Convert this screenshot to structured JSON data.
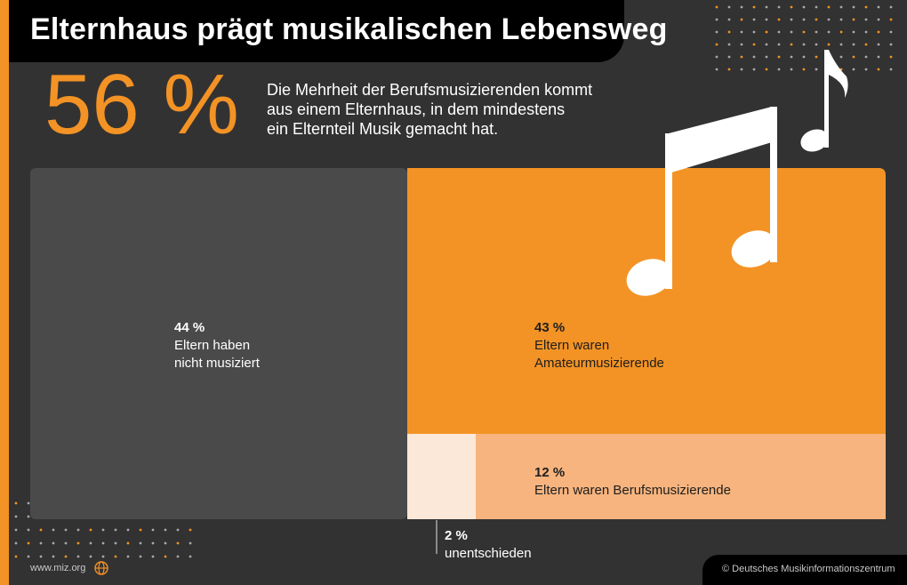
{
  "title": "Elternhaus prägt musikalischen Lebensweg",
  "headline_value": "56 %",
  "description": [
    "Die Mehrheit der Berufsmusizierenden kommt",
    "aus einem Elternhaus, in dem mindestens",
    "ein Elternteil Musik gemacht hat."
  ],
  "chart_data": {
    "type": "treemap",
    "title": "",
    "segments": [
      {
        "value": 44,
        "pct_label": "44 %",
        "label_lines": [
          "Eltern haben",
          "nicht musiziert"
        ],
        "color": "#4a4a4a"
      },
      {
        "value": 43,
        "pct_label": "43 %",
        "label_lines": [
          "Eltern waren",
          "Amateurmusizierende"
        ],
        "color": "#f39325"
      },
      {
        "value": 12,
        "pct_label": "12 %",
        "label_lines": [
          "Eltern waren Berufsmusizierende"
        ],
        "color": "#f7b47e"
      },
      {
        "value": 2,
        "pct_label": "2 %",
        "label_lines": [
          "unentschieden"
        ],
        "color": "#fce8d8"
      }
    ]
  },
  "footer": {
    "website": "www.miz.org",
    "credit": "© Deutsches Musikinformationszentrum"
  },
  "colors": {
    "background": "#333232",
    "accent": "#f39325",
    "title_bar": "#000000"
  },
  "icons": [
    "music-notes-icon",
    "globe-icon"
  ]
}
